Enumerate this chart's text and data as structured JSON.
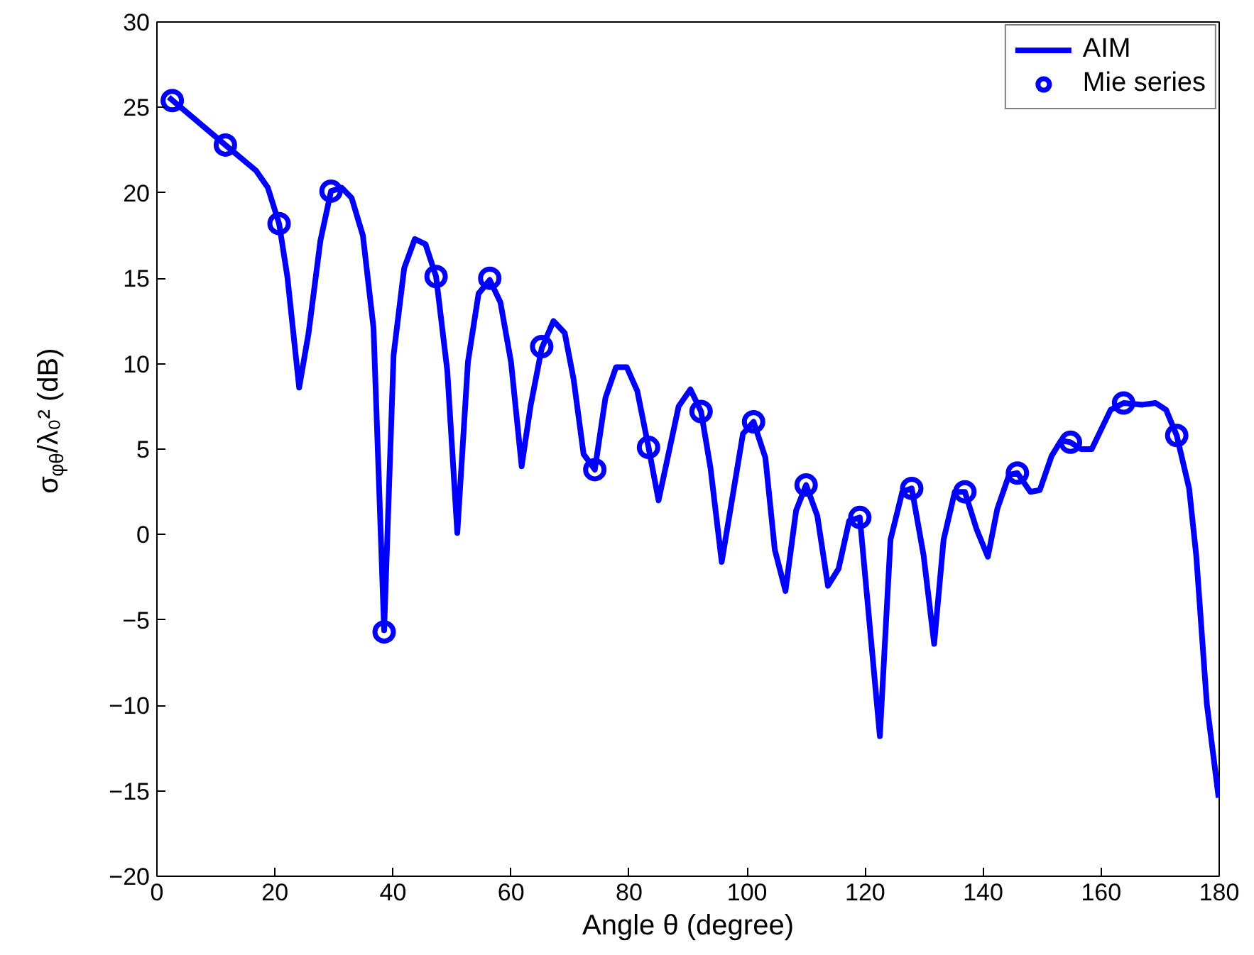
{
  "chart_data": {
    "type": "line",
    "xlabel": "Angle θ (degree)",
    "ylabel": "σ$_{φθ}$/λ₀² (dB)",
    "xlim": [
      0,
      180
    ],
    "ylim": [
      -20,
      30
    ],
    "xticks": [
      0,
      20,
      40,
      60,
      80,
      100,
      120,
      140,
      160,
      180
    ],
    "yticks": [
      -20,
      -15,
      -10,
      -5,
      0,
      5,
      10,
      15,
      20,
      25,
      30
    ],
    "grid": false,
    "legend": "top right",
    "series": [
      {
        "name": "AIM",
        "color": "#0000ff",
        "line_style": "solid",
        "marker": "none",
        "x": [
          2,
          11.6,
          16.8,
          18.8,
          20.7,
          22.1,
          24.1,
          25.7,
          27.7,
          29.5,
          31.3,
          33,
          34.9,
          36.7,
          38.5,
          40.1,
          41.9,
          43.7,
          45.5,
          47.3,
          49.2,
          50.9,
          52.7,
          54.5,
          56.4,
          58.2,
          60,
          61.8,
          63.3,
          65.2,
          67.2,
          69.1,
          70.6,
          72.3,
          74.2,
          76,
          77.8,
          79.6,
          81.4,
          83.3,
          85,
          88.4,
          90.4,
          92.2,
          93.8,
          95.7,
          99.3,
          101.1,
          103.1,
          104.7,
          106.5,
          108.3,
          110,
          111.9,
          113.7,
          115.5,
          117.3,
          119.1,
          122.5,
          124.3,
          126.3,
          127.9,
          129.9,
          131.7,
          133.3,
          135.2,
          136.9,
          138.9,
          140.8,
          142.4,
          144.4,
          145.8,
          148,
          149.6,
          151.6,
          153.2,
          154.8,
          156.6,
          158.4,
          161.6,
          163.8,
          167,
          169.2,
          171,
          172.8,
          174.9,
          176.1,
          177.9,
          179.9
        ],
        "values": [
          25.6,
          22.8,
          21.3,
          20.3,
          18.2,
          15.1,
          8.6,
          11.8,
          17.2,
          20.1,
          20.3,
          19.7,
          17.5,
          12.1,
          -5.6,
          10.5,
          15.6,
          17.3,
          17.0,
          15.1,
          9.6,
          0.1,
          10.1,
          14.1,
          14.9,
          13.6,
          10.1,
          4.0,
          7.5,
          10.9,
          12.5,
          11.8,
          9.1,
          4.7,
          3.8,
          8.0,
          9.8,
          9.8,
          8.4,
          5.1,
          2.0,
          7.5,
          8.5,
          7.2,
          3.9,
          -1.6,
          5.9,
          6.6,
          4.5,
          -0.9,
          -3.3,
          1.4,
          2.9,
          1.1,
          -3.0,
          -2.0,
          0.8,
          1.0,
          -11.8,
          -0.3,
          2.5,
          2.7,
          -1.2,
          -6.4,
          -0.3,
          2.5,
          2.5,
          0.3,
          -1.3,
          1.5,
          3.5,
          3.6,
          2.5,
          2.6,
          4.6,
          5.5,
          5.4,
          5.0,
          5.0,
          7.3,
          7.7,
          7.6,
          7.7,
          7.3,
          5.8,
          2.7,
          -1.2,
          -9.9,
          -15.4
        ]
      },
      {
        "name": "Mie series",
        "type": "scatter",
        "color": "#0000ff",
        "marker": "circle",
        "x": [
          2.6,
          11.6,
          20.7,
          29.5,
          38.5,
          47.3,
          56.4,
          65.2,
          74.2,
          83.3,
          92.2,
          101.1,
          110,
          119.1,
          127.9,
          136.9,
          145.8,
          154.8,
          163.8,
          172.8
        ],
        "values": [
          25.4,
          22.8,
          18.2,
          20.1,
          -5.7,
          15.1,
          15.0,
          11.0,
          3.8,
          5.1,
          7.2,
          6.6,
          2.9,
          1.0,
          2.7,
          2.5,
          3.6,
          5.4,
          7.7,
          5.8
        ]
      }
    ]
  }
}
